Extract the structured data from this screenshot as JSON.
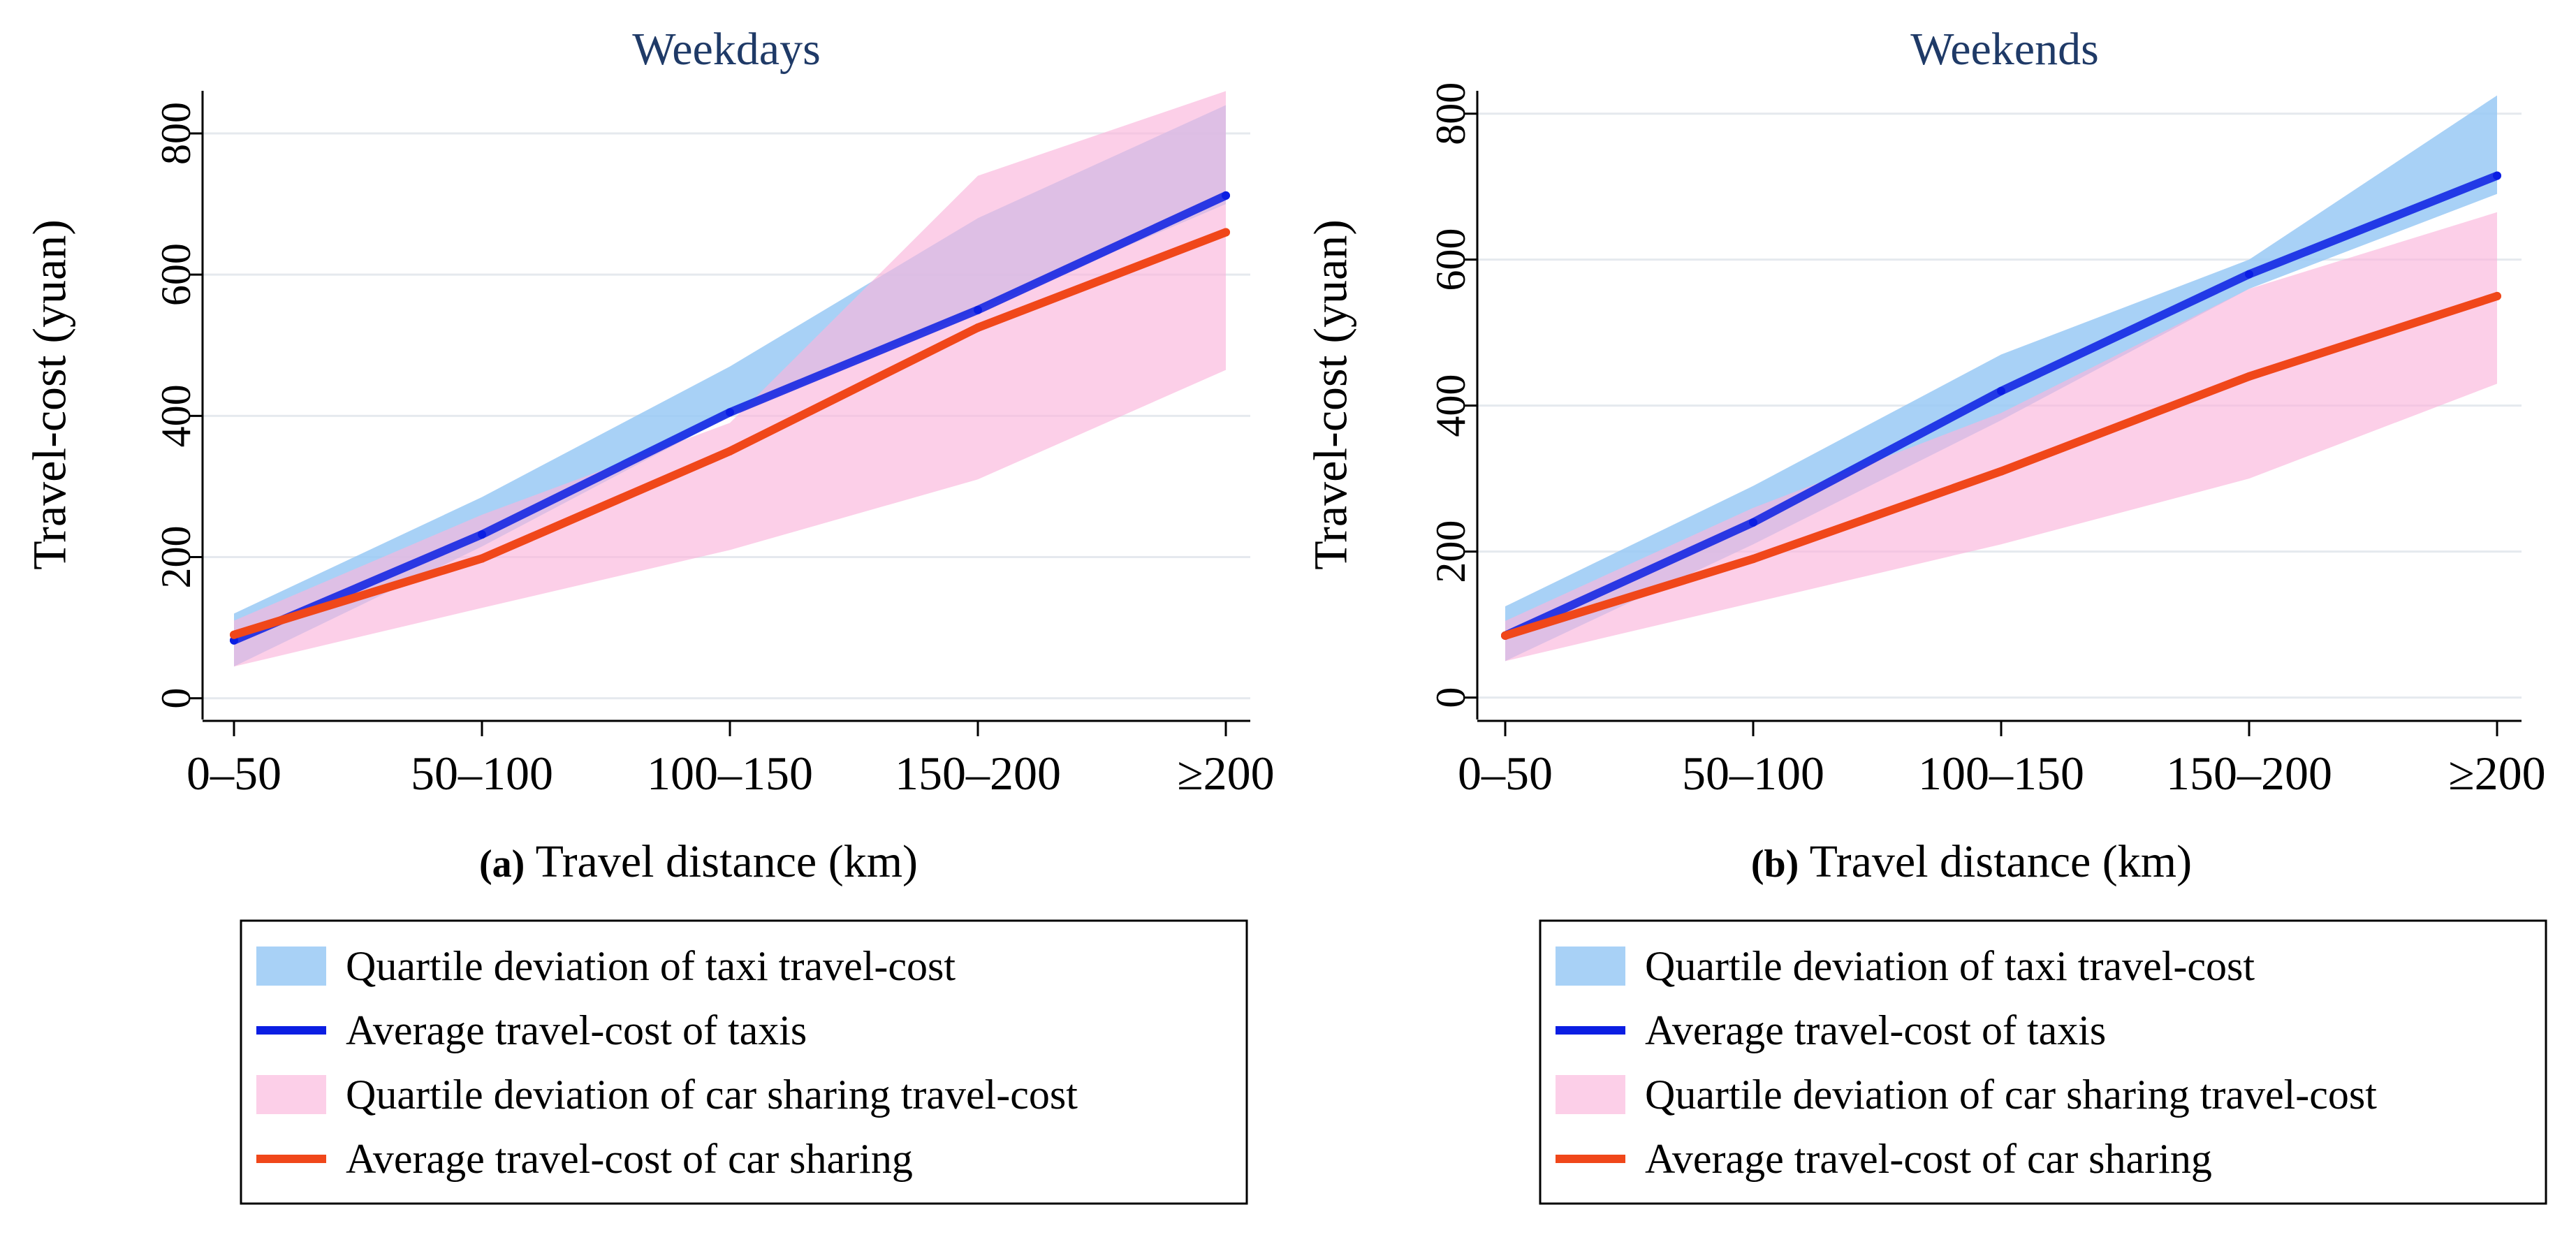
{
  "chart_data": [
    {
      "type": "line",
      "panel_label": "(a)",
      "title": "Weekdays",
      "xlabel": "Travel distance (km)",
      "ylabel": "Travel-cost (yuan)",
      "categories": [
        "0–50",
        "50–100",
        "100–150",
        "150–200",
        "≥200"
      ],
      "ylim": [
        -30,
        890
      ],
      "yticks": [
        0,
        200,
        400,
        600,
        800
      ],
      "grid": true,
      "series": [
        {
          "name": "Quartile deviation of taxi travel-cost",
          "kind": "band",
          "color": "#99c9f5",
          "opacity": 0.85,
          "lower": [
            45,
            215,
            400,
            550,
            700
          ],
          "upper": [
            120,
            285,
            470,
            680,
            840
          ]
        },
        {
          "name": "Average travel-cost of taxis",
          "kind": "line",
          "color": "#0b1ee3",
          "values": [
            82,
            232,
            405,
            550,
            712
          ]
        },
        {
          "name": "Quartile deviation of car sharing travel-cost",
          "kind": "band",
          "color": "#fbb6dc",
          "opacity": 0.65,
          "lower": [
            45,
            128,
            210,
            310,
            465
          ],
          "upper": [
            110,
            260,
            390,
            740,
            860
          ]
        },
        {
          "name": "Average travel-cost of car sharing",
          "kind": "line",
          "color": "#f0471a",
          "values": [
            90,
            198,
            350,
            525,
            660
          ]
        }
      ]
    },
    {
      "type": "line",
      "panel_label": "(b)",
      "title": "Weekends",
      "xlabel": "Travel distance (km)",
      "ylabel": "Travel-cost (yuan)",
      "categories": [
        "0–50",
        "50–100",
        "100–150",
        "150–200",
        "≥200"
      ],
      "ylim": [
        -30,
        860
      ],
      "yticks": [
        0,
        200,
        400,
        600,
        800
      ],
      "grid": true,
      "series": [
        {
          "name": "Quartile deviation of taxi travel-cost",
          "kind": "band",
          "color": "#99c9f5",
          "opacity": 0.85,
          "lower": [
            50,
            210,
            380,
            560,
            690
          ],
          "upper": [
            125,
            290,
            470,
            600,
            825
          ]
        },
        {
          "name": "Average travel-cost of taxis",
          "kind": "line",
          "color": "#0b1ee3",
          "values": [
            85,
            240,
            420,
            580,
            715
          ]
        },
        {
          "name": "Quartile deviation of car sharing travel-cost",
          "kind": "band",
          "color": "#fbb6dc",
          "opacity": 0.65,
          "lower": [
            50,
            130,
            210,
            300,
            430
          ],
          "upper": [
            105,
            260,
            390,
            560,
            665
          ]
        },
        {
          "name": "Average travel-cost of car sharing",
          "kind": "line",
          "color": "#f0471a",
          "values": [
            85,
            190,
            310,
            440,
            550
          ]
        }
      ]
    }
  ]
}
